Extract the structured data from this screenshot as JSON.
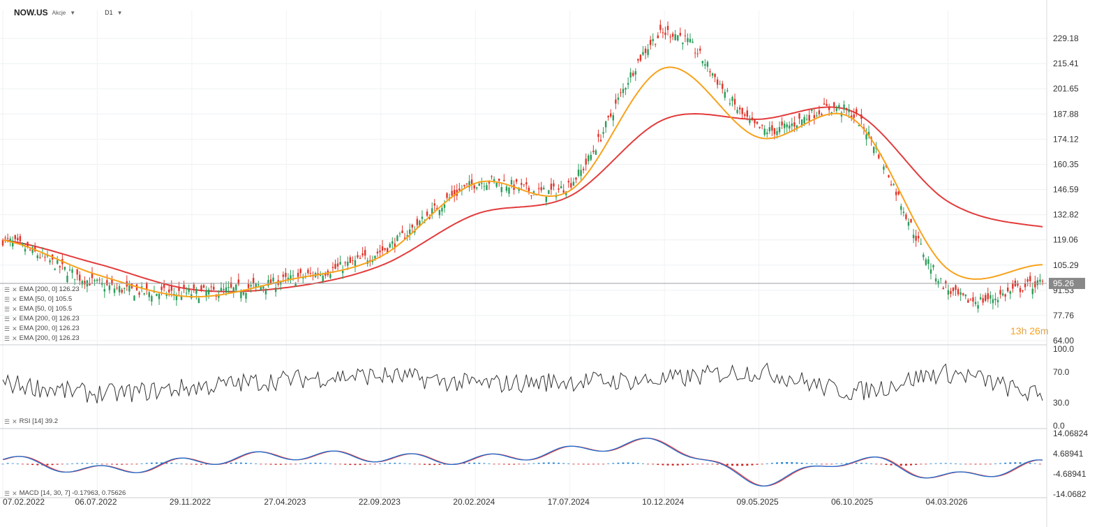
{
  "header": {
    "symbol": "NOW.US",
    "instrument_type": "Akcje",
    "timeframe": "D1"
  },
  "main_panel": {
    "price_axis": [
      "229.18",
      "215.41",
      "201.65",
      "187.88",
      "174.12",
      "160.35",
      "146.59",
      "132.82",
      "119.06",
      "105.29",
      "91.53",
      "77.76",
      "64.00"
    ],
    "current_price": "95.26",
    "current_price_value": 95.26,
    "timer": {
      "hours": "13",
      "h_unit": "h",
      "minutes": "26",
      "m_unit": "m"
    },
    "legend": [
      "EMA [200, 0] 126.23",
      "EMA [50, 0] 105.5",
      "EMA [50, 0] 105.5",
      "EMA [200, 0] 126.23",
      "EMA [200, 0] 126.23",
      "EMA [200, 0] 126.23"
    ]
  },
  "rsi_panel": {
    "label": "RSI [14] 39.2",
    "axis": [
      "100.0",
      "70.0",
      "30.0",
      "0.0"
    ]
  },
  "macd_panel": {
    "label": "MACD [14, 30, 7] -0.17963, 0.75626",
    "axis": [
      "14.06824",
      "4.68941",
      "-4.68941",
      "-14.0682"
    ]
  },
  "date_axis": [
    "07.02.2022",
    "06.07.2022",
    "29.11.2022",
    "27.04.2023",
    "22.09.2023",
    "20.02.2024",
    "17.07.2024",
    "10.12.2024",
    "09.05.2025",
    "06.10.2025",
    "04.03.2026"
  ],
  "colors": {
    "up": "#2a9d5a",
    "down": "#e0352b",
    "ema50": "#f7a21b",
    "ema200": "#e33b3b",
    "price_tag": "#888888",
    "macd_hist_pos": "#1f7fd1",
    "macd_hist_neg": "#d11f1f"
  },
  "chart_data": [
    {
      "type": "candlestick",
      "title": "NOW.US",
      "ylim": [
        64.0,
        236.0
      ],
      "x": [
        "07.02.2022",
        "06.07.2022",
        "29.11.2022",
        "27.04.2023",
        "22.09.2023",
        "20.02.2024",
        "17.07.2024",
        "10.12.2024",
        "09.05.2025",
        "06.10.2025",
        "04.03.2026",
        "2026-06"
      ],
      "close": [
        119,
        95,
        90,
        97,
        113,
        150,
        150,
        232,
        180,
        187,
        92,
        95.26
      ],
      "series": [
        {
          "name": "EMA [50, 0]",
          "values": [
            119,
            100,
            88,
            97,
            110,
            150,
            146,
            213,
            175,
            185,
            103,
            105.5
          ]
        },
        {
          "name": "EMA [200, 0]",
          "values": [
            119,
            106,
            92,
            93,
            105,
            133,
            143,
            185,
            185,
            189,
            140,
            126.23
          ]
        }
      ]
    },
    {
      "type": "line",
      "title": "RSI [14]",
      "ylim": [
        0,
        100
      ],
      "x": [
        "07.02.2022",
        "06.07.2022",
        "29.11.2022",
        "27.04.2023",
        "22.09.2023",
        "20.02.2024",
        "17.07.2024",
        "10.12.2024",
        "09.05.2025",
        "06.10.2025",
        "04.03.2026",
        "2026-06"
      ],
      "series": [
        {
          "name": "RSI [14]",
          "values": [
            55,
            42,
            50,
            60,
            65,
            55,
            58,
            60,
            70,
            45,
            68,
            39.2
          ]
        }
      ]
    },
    {
      "type": "line",
      "title": "MACD [14, 30, 7]",
      "ylim": [
        -14.0682,
        14.06824
      ],
      "series": [
        {
          "name": "MACD",
          "values": [
            2,
            -3,
            1,
            4,
            3,
            2,
            6,
            9,
            -8,
            2,
            -6,
            -0.17963
          ]
        },
        {
          "name": "Signal",
          "values": [
            1,
            -2,
            0,
            3,
            2,
            1,
            5,
            8,
            -6,
            1,
            -5,
            0.75626
          ]
        }
      ]
    }
  ]
}
